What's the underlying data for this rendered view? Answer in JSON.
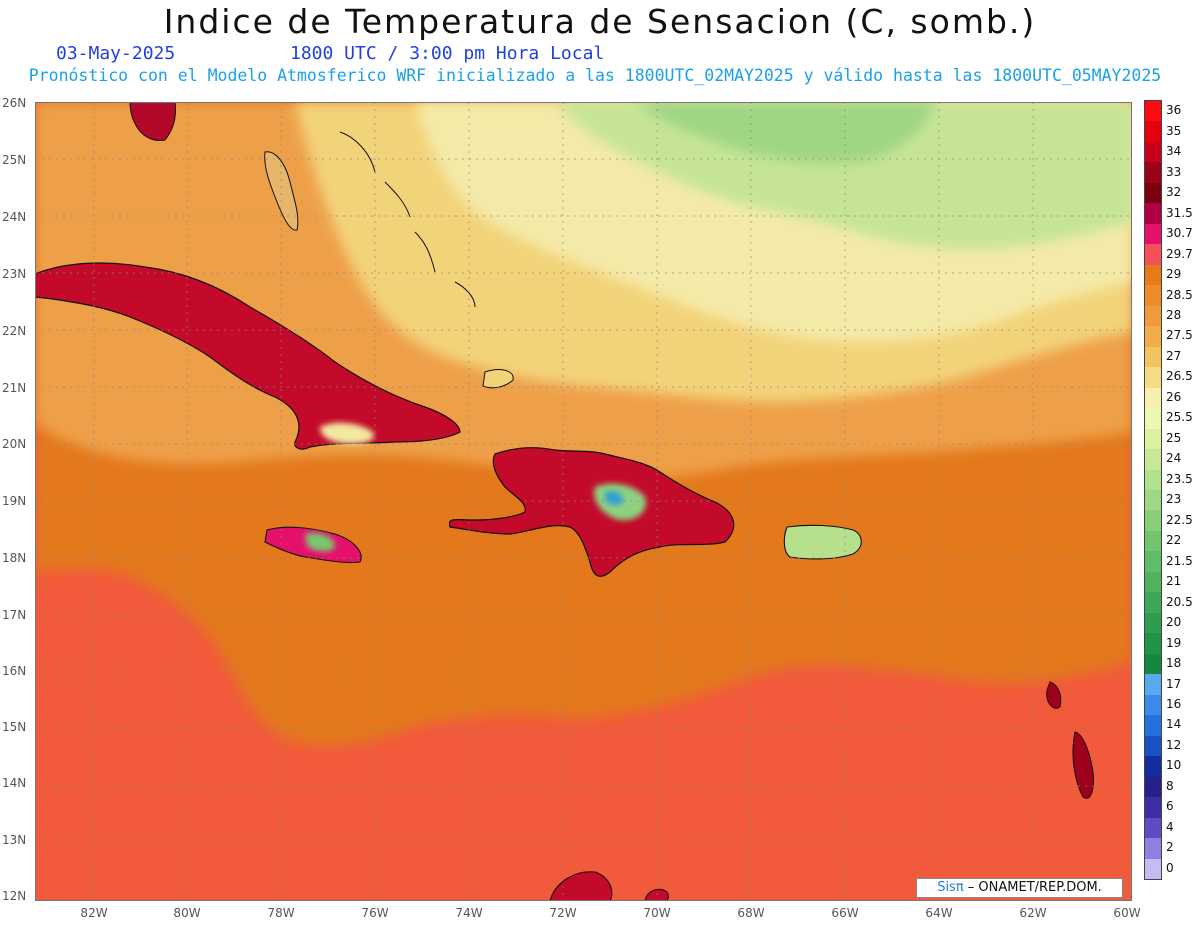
{
  "header": {
    "title": "Indice de Temperatura de Sensacion (C, somb.)",
    "date": "03-May-2025",
    "time": "1800 UTC / 3:00 pm Hora Local",
    "subtitle": "Pronóstico con el Modelo Atmosferico WRF inicializado a las 1800UTC_02MAY2025 y válido hasta las  1800UTC_05MAY2025"
  },
  "map": {
    "lat_labels": [
      "26N",
      "25N",
      "24N",
      "23N",
      "22N",
      "21N",
      "20N",
      "19N",
      "18N",
      "17N",
      "16N",
      "15N",
      "14N",
      "13N",
      "12N"
    ],
    "lon_labels": [
      "82W",
      "80W",
      "78W",
      "76W",
      "74W",
      "72W",
      "70W",
      "68W",
      "66W",
      "64W",
      "62W",
      "60W"
    ],
    "ocean_colors": [
      "#f3e89a",
      "#eec36a",
      "#e88a2a",
      "#e3781f",
      "#f25a3c"
    ],
    "land_hot_color": "#c30a2a",
    "land_cool_color": "#3cab5c"
  },
  "legend": {
    "labels": [
      "36",
      "35",
      "34",
      "33",
      "32",
      "31.5",
      "30.7",
      "29.7",
      "29",
      "28.5",
      "28",
      "27.5",
      "27",
      "26.5",
      "26",
      "25.5",
      "25",
      "24",
      "23.5",
      "23",
      "22.5",
      "22",
      "21.5",
      "21",
      "20.5",
      "20",
      "19",
      "18",
      "17",
      "16",
      "14",
      "12",
      "10",
      "8",
      "6",
      "4",
      "2",
      "0"
    ],
    "colors": [
      "#ff0a10",
      "#e6000d",
      "#c8001c",
      "#9e0016",
      "#7a0010",
      "#b00044",
      "#e5106a",
      "#f5505a",
      "#e87a18",
      "#ec8d2a",
      "#ef9a3c",
      "#f1ad4c",
      "#f3c45e",
      "#f4db84",
      "#f7eeb0",
      "#eef6b4",
      "#dcf0a0",
      "#c8e898",
      "#b3e08c",
      "#9ed884",
      "#88cf78",
      "#72c56e",
      "#60bc66",
      "#4fb25e",
      "#3da856",
      "#2e9e4e",
      "#1e9447",
      "#118a40",
      "#5aa8f0",
      "#3a8ce8",
      "#2372e0",
      "#1a50c8",
      "#152c9e",
      "#281f8c",
      "#3d2ea8",
      "#5d4cc4",
      "#8e80e0",
      "#c4bcf2"
    ]
  },
  "credit": {
    "brand": "Sisπ",
    "text": " – ONAMET/REP.DOM."
  }
}
